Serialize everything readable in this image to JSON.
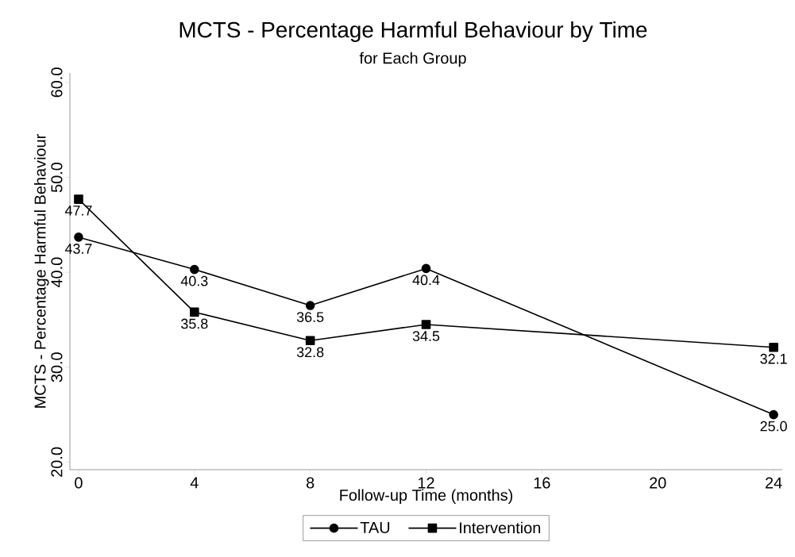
{
  "chart_data": {
    "type": "line",
    "title": "MCTS - Percentage Harmful Behaviour by Time",
    "subtitle": "for Each Group",
    "xlabel": "Follow-up Time (months)",
    "ylabel": "MCTS - Percentage Harmful Behaviour",
    "x": [
      0,
      4,
      8,
      12,
      24
    ],
    "series": [
      {
        "name": "TAU",
        "color": "#000000",
        "marker": "circle",
        "values": [
          43.7,
          40.3,
          36.5,
          40.4,
          25.0
        ],
        "value_labels": [
          "43.7",
          "40.3",
          "36.5",
          "40.4",
          "25.0"
        ]
      },
      {
        "name": "Intervention",
        "color": "#000000",
        "marker": "square",
        "values": [
          47.7,
          35.8,
          32.8,
          34.5,
          32.1
        ],
        "value_labels": [
          "47.7",
          "35.8",
          "32.8",
          "34.5",
          "32.1"
        ]
      }
    ],
    "xlim": [
      -0.3,
      24.3
    ],
    "ylim": [
      19.2,
      61
    ],
    "xticks": [
      0,
      4,
      8,
      12,
      16,
      20,
      24
    ],
    "yticks": [
      {
        "value": 20,
        "label": "20.0"
      },
      {
        "value": 30,
        "label": "30.0"
      },
      {
        "value": 40,
        "label": "40.0"
      },
      {
        "value": 50,
        "label": "50.0"
      },
      {
        "value": 60,
        "label": "60.0"
      }
    ],
    "grid": false,
    "legend": "bottom",
    "line_style": "solid"
  }
}
